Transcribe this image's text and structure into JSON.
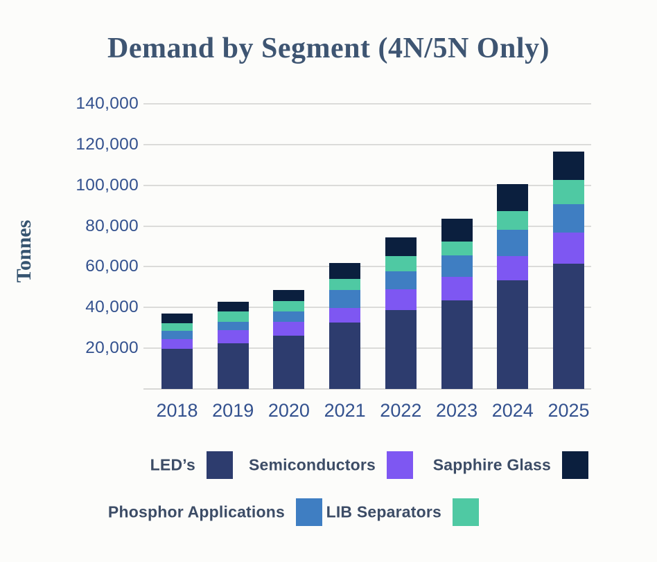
{
  "title": "Demand by Segment (4N/5N Only)",
  "y_axis_title": "Tonnes",
  "chart_data": {
    "type": "bar",
    "stacked": true,
    "title": "Demand by Segment (4N/5N Only)",
    "xlabel": "",
    "ylabel": "Tonnes",
    "ylim": [
      0,
      140000
    ],
    "ytick_interval": 20000,
    "ytick_labels": [
      "20,000",
      "40,000",
      "60,000",
      "80,000",
      "100,000",
      "120,000",
      "140,000"
    ],
    "grid": true,
    "legend_position": "bottom",
    "categories": [
      "2018",
      "2019",
      "2020",
      "2021",
      "2022",
      "2023",
      "2024",
      "2025"
    ],
    "series": [
      {
        "name": "LED’s",
        "color": "#2d3c6e",
        "values": [
          19800,
          22600,
          26300,
          32500,
          38800,
          43400,
          53400,
          61600
        ]
      },
      {
        "name": "Semiconductors",
        "color": "#7e57f2",
        "values": [
          4600,
          6200,
          6800,
          7400,
          10000,
          11800,
          12000,
          15100
        ]
      },
      {
        "name": "Phosphor Applications",
        "color": "#3f7ec2",
        "values": [
          4200,
          4100,
          5100,
          8700,
          9000,
          10300,
          12600,
          14000
        ]
      },
      {
        "name": "LIB Separators",
        "color": "#4fc9a3",
        "values": [
          3600,
          5000,
          4900,
          5600,
          7500,
          6900,
          9400,
          12000
        ]
      },
      {
        "name": "Sapphire Glass",
        "color": "#0b1f3e",
        "values": [
          4700,
          4900,
          5500,
          7800,
          9100,
          11100,
          13100,
          13900
        ]
      }
    ],
    "totals": [
      36900,
      42800,
      48600,
      62000,
      74400,
      83500,
      100500,
      116600
    ]
  },
  "legend_display_order": [
    "LED’s",
    "Semiconductors",
    "Sapphire Glass",
    "Phosphor Applications",
    "LIB Separators"
  ]
}
